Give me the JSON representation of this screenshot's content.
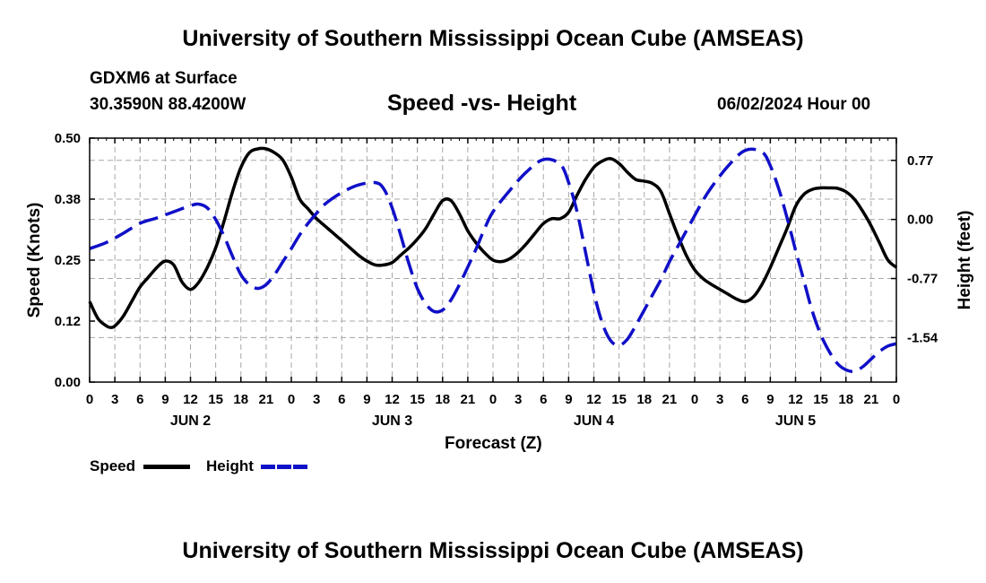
{
  "header": {
    "title": "University of Southern Mississippi Ocean Cube (AMSEAS)",
    "station": "GDXM6 at Surface",
    "coords": "30.3590N  88.4200W",
    "chart_title": "Speed -vs- Height",
    "datetime": "06/02/2024 Hour 00"
  },
  "footer": {
    "title": "University of Southern Mississippi Ocean Cube (AMSEAS)"
  },
  "legend": {
    "speed_label": "Speed",
    "height_label": "Height",
    "speed_color": "#000000",
    "height_color": "#1010c8"
  },
  "chart_data": {
    "type": "line",
    "title": "Speed -vs- Height",
    "xlabel": "Forecast (Z)",
    "ylabel": "Speed (Knots)",
    "y2label": "Height (feet)",
    "x_range_hours": [
      0,
      96
    ],
    "x_tick_labels": [
      "0",
      "3",
      "6",
      "9",
      "12",
      "15",
      "18",
      "21",
      "0",
      "3",
      "6",
      "9",
      "12",
      "15",
      "18",
      "21",
      "0",
      "3",
      "6",
      "9",
      "12",
      "15",
      "18",
      "21",
      "0",
      "3",
      "6",
      "9",
      "12",
      "15",
      "18",
      "21",
      "0"
    ],
    "day_labels": [
      {
        "label": "JUN 2",
        "hour": 12
      },
      {
        "label": "JUN 3",
        "hour": 36
      },
      {
        "label": "JUN 4",
        "hour": 60
      },
      {
        "label": "JUN 5",
        "hour": 84
      }
    ],
    "ylim": [
      0.0,
      0.5
    ],
    "y_ticks": [
      "0.00",
      "0.12",
      "0.25",
      "0.38",
      "0.50"
    ],
    "y_tick_values": [
      0.0,
      0.125,
      0.25,
      0.375,
      0.5
    ],
    "y2lim": [
      -2.12,
      1.06
    ],
    "y2_ticks": [
      "-1.54",
      "-0.77",
      "0.00",
      "0.77"
    ],
    "y2_tick_values": [
      -1.54,
      -0.77,
      0.0,
      0.77
    ],
    "series": [
      {
        "name": "Speed",
        "axis": "left",
        "style": "solid",
        "color": "#000000",
        "x": [
          0,
          1,
          2,
          2.5,
          3,
          4,
          5,
          6,
          7,
          8,
          9,
          10,
          11,
          12,
          13,
          14,
          15,
          16,
          17,
          18,
          19,
          20,
          21,
          22,
          23,
          24,
          25,
          26,
          27,
          28,
          29,
          30,
          31,
          32,
          33,
          34,
          35,
          36,
          37,
          38,
          39,
          40,
          41,
          42,
          43,
          44,
          45,
          46,
          47,
          48,
          49,
          50,
          51,
          52,
          53,
          54,
          55,
          56,
          57,
          58,
          59,
          60,
          61,
          62,
          63,
          64,
          65,
          66,
          67,
          68,
          69,
          70,
          71,
          72,
          73,
          74,
          75,
          76,
          77,
          78,
          79,
          80,
          81,
          82,
          83,
          84,
          85,
          86,
          87,
          88,
          89,
          90,
          91,
          92,
          93,
          94,
          95,
          96
        ],
        "values": [
          0.165,
          0.13,
          0.115,
          0.112,
          0.115,
          0.135,
          0.165,
          0.195,
          0.215,
          0.235,
          0.248,
          0.24,
          0.205,
          0.19,
          0.205,
          0.235,
          0.275,
          0.33,
          0.39,
          0.44,
          0.47,
          0.478,
          0.478,
          0.47,
          0.455,
          0.42,
          0.375,
          0.355,
          0.335,
          0.32,
          0.305,
          0.29,
          0.275,
          0.26,
          0.248,
          0.24,
          0.24,
          0.245,
          0.26,
          0.275,
          0.293,
          0.315,
          0.345,
          0.372,
          0.372,
          0.345,
          0.31,
          0.285,
          0.265,
          0.25,
          0.247,
          0.253,
          0.266,
          0.284,
          0.305,
          0.325,
          0.335,
          0.335,
          0.348,
          0.383,
          0.415,
          0.44,
          0.453,
          0.458,
          0.448,
          0.43,
          0.415,
          0.412,
          0.407,
          0.39,
          0.345,
          0.3,
          0.26,
          0.23,
          0.212,
          0.2,
          0.19,
          0.18,
          0.17,
          0.165,
          0.175,
          0.2,
          0.235,
          0.275,
          0.315,
          0.36,
          0.385,
          0.395,
          0.398,
          0.398,
          0.397,
          0.39,
          0.375,
          0.35,
          0.32,
          0.285,
          0.25,
          0.235
        ]
      },
      {
        "name": "Height",
        "axis": "right",
        "style": "dashed",
        "color": "#1010c8",
        "x": [
          0,
          2,
          4,
          6,
          8,
          10,
          12,
          13,
          14,
          15,
          16,
          17,
          18,
          19,
          20,
          21,
          22,
          23,
          24,
          25,
          26,
          27,
          28,
          30,
          32,
          34,
          35,
          36,
          37,
          38,
          39,
          40,
          41,
          42,
          43,
          44,
          45,
          46,
          47,
          48,
          50,
          52,
          54,
          56,
          57,
          58,
          59,
          60,
          61,
          62,
          63,
          64,
          65,
          66,
          67,
          68,
          69,
          70,
          71,
          72,
          73,
          74,
          76,
          78,
          80,
          81,
          82,
          83,
          84,
          85,
          86,
          87,
          88,
          89,
          90,
          91,
          92,
          93,
          94,
          95,
          96
        ],
        "values": [
          -0.38,
          -0.3,
          -0.18,
          -0.05,
          0.02,
          0.1,
          0.18,
          0.2,
          0.15,
          0.0,
          -0.22,
          -0.48,
          -0.72,
          -0.85,
          -0.9,
          -0.85,
          -0.72,
          -0.55,
          -0.38,
          -0.2,
          -0.05,
          0.08,
          0.2,
          0.35,
          0.45,
          0.48,
          0.4,
          0.15,
          -0.2,
          -0.58,
          -0.9,
          -1.1,
          -1.2,
          -1.18,
          -1.05,
          -0.85,
          -0.62,
          -0.38,
          -0.12,
          0.1,
          0.38,
          0.62,
          0.78,
          0.72,
          0.48,
          0.1,
          -0.42,
          -0.95,
          -1.35,
          -1.58,
          -1.64,
          -1.56,
          -1.38,
          -1.18,
          -0.98,
          -0.78,
          -0.55,
          -0.35,
          -0.15,
          0.05,
          0.25,
          0.42,
          0.7,
          0.9,
          0.88,
          0.7,
          0.4,
          0.02,
          -0.4,
          -0.8,
          -1.2,
          -1.5,
          -1.72,
          -1.88,
          -1.96,
          -1.98,
          -1.92,
          -1.82,
          -1.72,
          -1.65,
          -1.62
        ]
      }
    ]
  }
}
